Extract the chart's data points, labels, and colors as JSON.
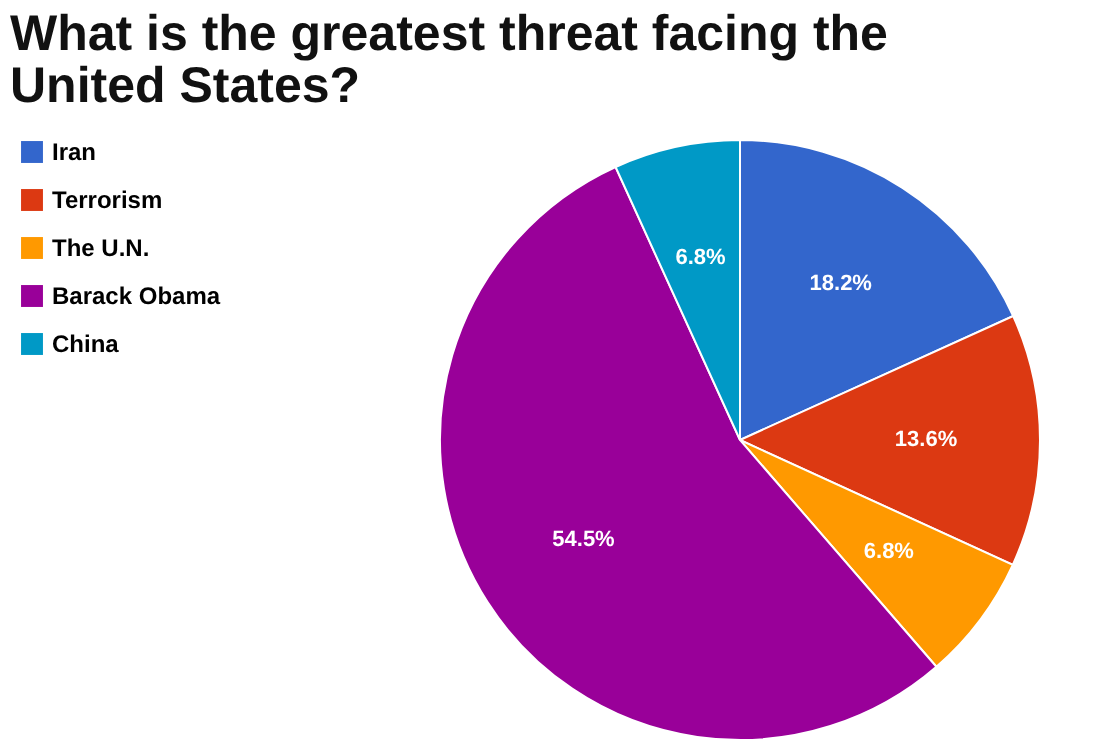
{
  "chart_data": {
    "type": "pie",
    "title": "What is the greatest threat facing the United States?",
    "categories": [
      "Iran",
      "Terrorism",
      "The U.N.",
      "Barack Obama",
      "China"
    ],
    "values": [
      18.2,
      13.6,
      6.8,
      54.5,
      6.8
    ],
    "value_labels": [
      "18.2%",
      "13.6%",
      "6.8%",
      "54.5%",
      "6.8%"
    ],
    "colors": [
      "#3366cc",
      "#dc3912",
      "#ff9900",
      "#990099",
      "#0099c6"
    ],
    "legend": "top left"
  }
}
